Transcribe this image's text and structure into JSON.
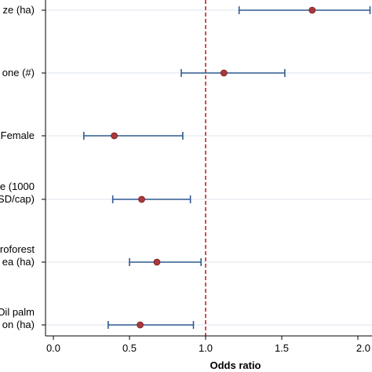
{
  "chart_data": {
    "type": "forest",
    "xlabel": "Odds ratio",
    "x_ticks": [
      "0.0",
      "0.5",
      "1.0",
      "1.5",
      "2.0"
    ],
    "xlim": [
      -0.03,
      2.05
    ],
    "reference_line": 1.0,
    "grid": "horizontal",
    "colors": {
      "point": "#a8383b",
      "ci": "#2e5b8f",
      "reference": "#c0282d",
      "grid": "#dce6ec",
      "axis": "#000000"
    },
    "rows": [
      {
        "label_lines": [
          "ze (ha)"
        ],
        "or": 1.7,
        "lo": 1.22,
        "hi": 2.08
      },
      {
        "label_lines": [
          "one (#)"
        ],
        "or": 1.12,
        "lo": 0.84,
        "hi": 1.52
      },
      {
        "label_lines": [
          "Female"
        ],
        "or": 0.4,
        "lo": 0.2,
        "hi": 0.85
      },
      {
        "label_lines": [
          "e (1000",
          "SD/cap)"
        ],
        "or": 0.58,
        "lo": 0.39,
        "hi": 0.9
      },
      {
        "label_lines": [
          "roforest",
          "ea (ha)"
        ],
        "or": 0.68,
        "lo": 0.5,
        "hi": 0.97
      },
      {
        "label_lines": [
          "Oil palm",
          "on (ha)"
        ],
        "or": 0.57,
        "lo": 0.36,
        "hi": 0.92
      }
    ]
  }
}
